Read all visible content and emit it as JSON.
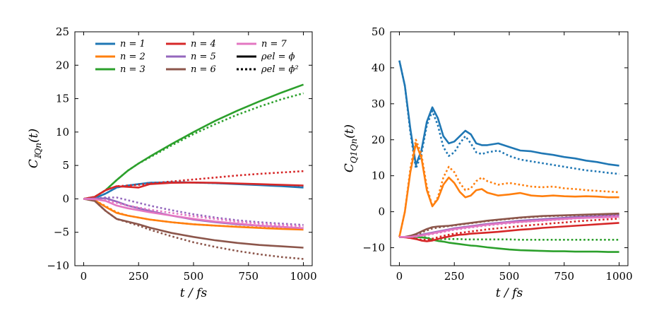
{
  "figure": {
    "legend": {
      "series_labels": [
        "n = 1",
        "n = 2",
        "n = 3",
        "n = 4",
        "n = 5",
        "n = 6",
        "n = 7"
      ],
      "style_labels": [
        "ρel = ϕ",
        "ρel = ϕ²"
      ]
    },
    "colors": [
      "#1f77b4",
      "#ff7f0e",
      "#2ca02c",
      "#d62728",
      "#9467bd",
      "#8c564b",
      "#e377c2"
    ]
  },
  "chart_data": [
    {
      "type": "line",
      "title": "",
      "xlabel": "t / fs",
      "ylabel": "C_𝕀Q_n(t)",
      "ylabel_main": "C",
      "ylabel_sub": "𝕀Qn",
      "ylabel_tail": "(t)",
      "xlim": [
        -40,
        1040
      ],
      "ylim": [
        -10,
        25
      ],
      "xticks": [
        0,
        250,
        500,
        750,
        1000
      ],
      "yticks": [
        -10,
        -5,
        0,
        5,
        10,
        15,
        20,
        25
      ],
      "x": [
        0,
        50,
        100,
        150,
        200,
        250,
        300,
        400,
        500,
        600,
        700,
        800,
        900,
        1000
      ],
      "series": [
        {
          "name": "n = 1, ρel = ϕ",
          "style": "solid",
          "color_index": 0,
          "values": [
            0,
            0.1,
            0.8,
            1.7,
            2.0,
            2.2,
            2.4,
            2.5,
            2.45,
            2.35,
            2.2,
            2.05,
            1.9,
            1.7
          ]
        },
        {
          "name": "n = 1, ρel = ϕ²",
          "style": "dotted",
          "color_index": 0,
          "values": [
            0,
            0.1,
            0.8,
            1.7,
            2.0,
            2.2,
            2.4,
            2.5,
            2.45,
            2.35,
            2.25,
            2.15,
            2.05,
            1.95
          ]
        },
        {
          "name": "n = 2, ρel = ϕ",
          "style": "solid",
          "color_index": 1,
          "values": [
            0,
            -0.2,
            -1.2,
            -2.1,
            -2.5,
            -2.8,
            -3.1,
            -3.5,
            -3.8,
            -4.0,
            -4.2,
            -4.35,
            -4.5,
            -4.6
          ]
        },
        {
          "name": "n = 2, ρel = ϕ²",
          "style": "dotted",
          "color_index": 1,
          "values": [
            0,
            -0.2,
            -1.1,
            -2.0,
            -2.5,
            -2.8,
            -3.1,
            -3.5,
            -3.8,
            -4.0,
            -4.15,
            -4.3,
            -4.4,
            -4.5
          ]
        },
        {
          "name": "n = 3, ρel = ϕ",
          "style": "solid",
          "color_index": 2,
          "values": [
            0,
            0.3,
            1.3,
            2.8,
            4.2,
            5.3,
            6.3,
            8.2,
            10.0,
            11.7,
            13.2,
            14.6,
            15.9,
            17.1
          ]
        },
        {
          "name": "n = 3, ρel = ϕ²",
          "style": "dotted",
          "color_index": 2,
          "values": [
            0,
            0.3,
            1.3,
            2.8,
            4.2,
            5.3,
            6.2,
            8.0,
            9.7,
            11.2,
            12.6,
            13.8,
            14.9,
            15.8
          ]
        },
        {
          "name": "n = 4, ρel = ϕ",
          "style": "solid",
          "color_index": 3,
          "values": [
            0,
            0.3,
            1.3,
            1.9,
            1.8,
            1.7,
            2.2,
            2.4,
            2.45,
            2.4,
            2.3,
            2.2,
            2.1,
            2.0
          ]
        },
        {
          "name": "n = 4, ρel = ϕ²",
          "style": "dotted",
          "color_index": 3,
          "values": [
            0,
            0.3,
            1.3,
            1.9,
            2.0,
            2.1,
            2.3,
            2.6,
            2.9,
            3.2,
            3.5,
            3.75,
            3.95,
            4.15
          ]
        },
        {
          "name": "n = 5, ρel = ϕ",
          "style": "solid",
          "color_index": 4,
          "values": [
            0,
            0.05,
            0.1,
            -0.4,
            -1.0,
            -1.4,
            -1.8,
            -2.5,
            -3.1,
            -3.5,
            -3.8,
            -4.0,
            -4.2,
            -4.4
          ]
        },
        {
          "name": "n = 5, ρel = ϕ²",
          "style": "dotted",
          "color_index": 4,
          "values": [
            0,
            0.05,
            0.2,
            0.2,
            -0.2,
            -0.6,
            -1.0,
            -1.7,
            -2.3,
            -2.8,
            -3.2,
            -3.5,
            -3.7,
            -3.9
          ]
        },
        {
          "name": "n = 6, ρel = ϕ",
          "style": "solid",
          "color_index": 5,
          "values": [
            0,
            -0.3,
            -1.8,
            -3.0,
            -3.4,
            -3.8,
            -4.3,
            -5.1,
            -5.7,
            -6.2,
            -6.6,
            -6.9,
            -7.1,
            -7.3
          ]
        },
        {
          "name": "n = 6, ρel = ϕ²",
          "style": "dotted",
          "color_index": 5,
          "values": [
            0,
            -0.3,
            -1.8,
            -3.0,
            -3.5,
            -4.0,
            -4.6,
            -5.6,
            -6.5,
            -7.2,
            -7.8,
            -8.3,
            -8.7,
            -9.0
          ]
        },
        {
          "name": "n = 7, ρel = ϕ",
          "style": "solid",
          "color_index": 6,
          "values": [
            0,
            -0.05,
            -0.3,
            -1.0,
            -1.4,
            -1.7,
            -2.0,
            -2.5,
            -3.0,
            -3.4,
            -3.7,
            -4.0,
            -4.2,
            -4.4
          ]
        },
        {
          "name": "n = 7, ρel = ϕ²",
          "style": "dotted",
          "color_index": 6,
          "values": [
            0,
            -0.05,
            -0.2,
            -0.6,
            -1.0,
            -1.3,
            -1.6,
            -2.1,
            -2.6,
            -3.0,
            -3.4,
            -3.7,
            -3.9,
            -4.1
          ]
        }
      ]
    },
    {
      "type": "line",
      "title": "",
      "xlabel": "t / fs",
      "ylabel": "C_Q1Q_n(t)",
      "ylabel_main": "C",
      "ylabel_sub": "Q1Qn",
      "ylabel_tail": "(t)",
      "xlim": [
        -40,
        1040
      ],
      "ylim": [
        -15,
        50
      ],
      "xticks": [
        0,
        250,
        500,
        750,
        1000
      ],
      "yticks": [
        -10,
        0,
        10,
        20,
        30,
        40,
        50
      ],
      "x": [
        0,
        25,
        50,
        75,
        100,
        125,
        150,
        175,
        200,
        225,
        250,
        275,
        300,
        325,
        350,
        375,
        400,
        450,
        500,
        550,
        600,
        650,
        700,
        750,
        800,
        850,
        900,
        950,
        1000
      ],
      "series": [
        {
          "name": "n = 1, ρel = ϕ",
          "style": "solid",
          "color_index": 0,
          "values": [
            42,
            35,
            23,
            13,
            17,
            25,
            29,
            26,
            21,
            19,
            19.5,
            21,
            22.5,
            21.5,
            19,
            18.5,
            18.5,
            19,
            18,
            17,
            16.8,
            16.2,
            15.8,
            15.2,
            14.8,
            14.2,
            13.8,
            13.2,
            12.8
          ]
        },
        {
          "name": "n = 1, ρel = ϕ²",
          "style": "dotted",
          "color_index": 0,
          "values": [
            42,
            35,
            22,
            12,
            16,
            24,
            28,
            24,
            18,
            15.5,
            16.5,
            19,
            21,
            19,
            16.5,
            16,
            16.5,
            17,
            15.5,
            14.5,
            14,
            13.5,
            13,
            12.5,
            12,
            11.5,
            11.2,
            10.8,
            10.5
          ]
        },
        {
          "name": "n = 2, ρel = ϕ",
          "style": "solid",
          "color_index": 1,
          "values": [
            -7,
            0,
            11,
            19,
            15,
            6,
            1.5,
            3.5,
            7.5,
            9.5,
            8,
            5.5,
            4,
            4.5,
            6,
            6.3,
            5.3,
            4.5,
            4.8,
            5.2,
            4.5,
            4.3,
            4.5,
            4.3,
            4.2,
            4.3,
            4.2,
            4.0,
            4.0
          ]
        },
        {
          "name": "n = 2, ρel = ϕ²",
          "style": "dotted",
          "color_index": 1,
          "values": [
            -7,
            0,
            12,
            20,
            16,
            7,
            1.5,
            4,
            9.5,
            12.5,
            11,
            8,
            6,
            6.5,
            8.5,
            9.5,
            8.5,
            7.5,
            8,
            7.5,
            7,
            6.8,
            7,
            6.5,
            6.3,
            6,
            5.8,
            5.6,
            5.4
          ]
        },
        {
          "name": "n = 3, ρel = ϕ",
          "style": "solid",
          "color_index": 2,
          "values": [
            -7,
            -7,
            -7,
            -7,
            -7.1,
            -7.3,
            -7.8,
            -8.1,
            -8.3,
            -8.6,
            -8.8,
            -9,
            -9.2,
            -9.4,
            -9.5,
            -9.7,
            -9.9,
            -10.2,
            -10.5,
            -10.7,
            -10.8,
            -10.9,
            -11,
            -11,
            -11.1,
            -11.1,
            -11.1,
            -11.2,
            -11.2
          ]
        },
        {
          "name": "n = 3, ρel = ϕ²",
          "style": "dotted",
          "color_index": 2,
          "values": [
            -7,
            -7,
            -7,
            -7,
            -7,
            -7.2,
            -7.5,
            -7.6,
            -7.6,
            -7.6,
            -7.6,
            -7.6,
            -7.7,
            -7.7,
            -7.7,
            -7.7,
            -7.7,
            -7.7,
            -7.7,
            -7.8,
            -7.8,
            -7.8,
            -7.8,
            -7.8,
            -7.8,
            -7.8,
            -7.8,
            -7.8,
            -7.8
          ]
        },
        {
          "name": "n = 4, ρel = ϕ",
          "style": "solid",
          "color_index": 3,
          "values": [
            -7,
            -7.1,
            -7.3,
            -7.6,
            -8,
            -8.2,
            -8,
            -7.6,
            -7.2,
            -6.9,
            -6.6,
            -6.4,
            -6.3,
            -6.1,
            -6,
            -5.9,
            -5.8,
            -5.6,
            -5.3,
            -5,
            -4.8,
            -4.5,
            -4.3,
            -4.1,
            -3.9,
            -3.7,
            -3.5,
            -3.3,
            -3.1
          ]
        },
        {
          "name": "n = 4, ρel = ϕ²",
          "style": "dotted",
          "color_index": 3,
          "values": [
            -7,
            -7.1,
            -7.3,
            -7.5,
            -7.8,
            -7.8,
            -7.5,
            -7.1,
            -6.7,
            -6.4,
            -6.1,
            -5.9,
            -5.7,
            -5.5,
            -5.3,
            -5.1,
            -4.9,
            -4.6,
            -4.3,
            -4,
            -3.7,
            -3.5,
            -3.2,
            -3,
            -2.7,
            -2.5,
            -2.3,
            -2.1,
            -1.9
          ]
        },
        {
          "name": "n = 5, ρel = ϕ",
          "style": "solid",
          "color_index": 4,
          "values": [
            -7,
            -7,
            -6.9,
            -6.7,
            -6.4,
            -6.1,
            -5.8,
            -5.5,
            -5.2,
            -4.9,
            -4.6,
            -4.4,
            -4.2,
            -4,
            -3.8,
            -3.6,
            -3.4,
            -3.1,
            -2.8,
            -2.5,
            -2.3,
            -2.1,
            -1.9,
            -1.7,
            -1.5,
            -1.4,
            -1.3,
            -1.1,
            -1
          ]
        },
        {
          "name": "n = 5, ρel = ϕ²",
          "style": "dotted",
          "color_index": 4,
          "values": [
            -7,
            -7,
            -6.9,
            -6.8,
            -6.6,
            -6.3,
            -6,
            -5.7,
            -5.4,
            -5.1,
            -4.8,
            -4.5,
            -4.3,
            -4.1,
            -3.9,
            -3.7,
            -3.5,
            -3.2,
            -2.9,
            -2.6,
            -2.3,
            -2.1,
            -1.9,
            -1.7,
            -1.5,
            -1.3,
            -1.1,
            -0.9,
            -0.7
          ]
        },
        {
          "name": "n = 6, ρel = ϕ",
          "style": "solid",
          "color_index": 5,
          "values": [
            -7,
            -7,
            -6.7,
            -6.2,
            -5.5,
            -4.8,
            -4.3,
            -4.1,
            -4,
            -3.9,
            -3.7,
            -3.5,
            -3.3,
            -3.1,
            -2.9,
            -2.7,
            -2.5,
            -2.2,
            -1.9,
            -1.6,
            -1.4,
            -1.2,
            -1.1,
            -1,
            -0.9,
            -0.8,
            -0.7,
            -0.6,
            -0.5
          ]
        },
        {
          "name": "n = 6, ρel = ϕ²",
          "style": "dotted",
          "color_index": 5,
          "values": [
            -7,
            -7,
            -6.8,
            -6.4,
            -5.8,
            -5.2,
            -4.7,
            -4.4,
            -4.2,
            -4,
            -3.8,
            -3.6,
            -3.4,
            -3.2,
            -3,
            -2.8,
            -2.6,
            -2.3,
            -2,
            -1.7,
            -1.5,
            -1.3,
            -1.2,
            -1.1,
            -1,
            -0.9,
            -0.8,
            -0.7,
            -0.6
          ]
        },
        {
          "name": "n = 7, ρel = ϕ",
          "style": "solid",
          "color_index": 6,
          "values": [
            -7,
            -7,
            -7,
            -6.8,
            -6.6,
            -6.3,
            -6,
            -5.7,
            -5.4,
            -5.1,
            -4.8,
            -4.6,
            -4.4,
            -4.2,
            -4,
            -3.8,
            -3.6,
            -3.3,
            -3,
            -2.8,
            -2.6,
            -2.4,
            -2.2,
            -2,
            -1.8,
            -1.7,
            -1.6,
            -1.5,
            -1.4
          ]
        },
        {
          "name": "n = 7, ρel = ϕ²",
          "style": "dotted",
          "color_index": 6,
          "values": [
            -7,
            -7,
            -7,
            -6.9,
            -6.7,
            -6.5,
            -6.2,
            -5.9,
            -5.6,
            -5.3,
            -5,
            -4.8,
            -4.6,
            -4.4,
            -4.2,
            -4,
            -3.8,
            -3.5,
            -3.2,
            -2.9,
            -2.7,
            -2.5,
            -2.3,
            -2.1,
            -1.9,
            -1.7,
            -1.5,
            -1.3,
            -1.1
          ]
        }
      ]
    }
  ]
}
